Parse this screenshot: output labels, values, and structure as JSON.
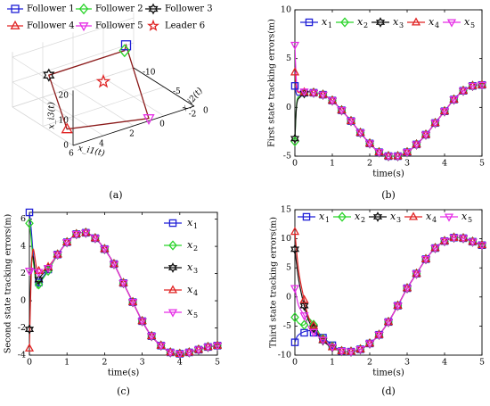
{
  "colors": {
    "x1": "#1f1fd6",
    "x2": "#2bd42b",
    "x3": "#111111",
    "x4": "#e02424",
    "x5": "#e62ee6",
    "leader": "#e02424",
    "trajectory": "#8b1a1a",
    "grid": "#d8d8d8"
  },
  "chart_data": [
    {
      "type": "scatter",
      "panel_label": "(a)",
      "projection": "3d",
      "xlabel": "x_i1(t)",
      "ylabel": "x_i2(t)",
      "zlabel": "x_i3(t)",
      "x_ticks": [
        "6",
        "4",
        "2",
        "0",
        "-2"
      ],
      "y_ticks": [
        "0",
        "-5",
        "-10"
      ],
      "z_ticks": [
        "0",
        "10",
        "20"
      ],
      "legend": [
        "Follower 1",
        "Follower 2",
        "Follower 3",
        "Follower 4",
        "Follower 5",
        "Leader 6"
      ],
      "legend_position": "top",
      "points": [
        {
          "name": "Follower 1",
          "marker": "square",
          "x": -1.5,
          "y": -10,
          "z": 10
        },
        {
          "name": "Follower 2",
          "marker": "diamond",
          "x": 1,
          "y": -4,
          "z": 22
        },
        {
          "name": "Follower 3",
          "marker": "hexagram",
          "x": 6,
          "y": -4,
          "z": 22
        },
        {
          "name": "Follower 4",
          "marker": "triangle-up",
          "x": 6,
          "y": -1,
          "z": 5
        },
        {
          "name": "Follower 5",
          "marker": "triangle-down",
          "x": 1,
          "y": 0,
          "z": 1
        },
        {
          "name": "Leader 6",
          "marker": "pentagram",
          "x": 2,
          "y": -5,
          "z": 10
        }
      ]
    },
    {
      "type": "line",
      "panel_label": "(b)",
      "xlabel": "time(s)",
      "ylabel": "First state tracking errors(m)",
      "xlim": [
        0,
        5
      ],
      "ylim": [
        -5,
        10
      ],
      "xticks": [
        "0",
        "1",
        "2",
        "3",
        "4",
        "5"
      ],
      "yticks": [
        "-5",
        "0",
        "5",
        "10"
      ],
      "grid": false,
      "legend_position": "top",
      "legend_labels": [
        "x",
        "x",
        "x",
        "x",
        "x"
      ],
      "legend_subscripts": [
        "1",
        "2",
        "3",
        "4",
        "5"
      ],
      "markers": [
        "square",
        "diamond",
        "hexagram",
        "triangle-up",
        "triangle-down"
      ],
      "series": [
        {
          "name": "x1",
          "x": [
            0,
            0.05,
            0.15,
            0.3,
            0.5,
            0.75,
            1,
            1.25,
            1.5,
            1.75,
            2,
            2.25,
            2.5,
            2.75,
            3,
            3.25,
            3.5,
            3.75,
            4,
            4.25,
            4.5,
            4.75,
            5
          ],
          "y": [
            2.2,
            1.3,
            1.3,
            1.6,
            1.5,
            1.3,
            0.7,
            -0.3,
            -1.4,
            -2.6,
            -3.7,
            -4.6,
            -5.0,
            -5.0,
            -4.6,
            -3.8,
            -2.8,
            -1.6,
            -0.4,
            0.8,
            1.7,
            2.2,
            2.3
          ]
        },
        {
          "name": "x2",
          "x": [
            0,
            0.05,
            0.15,
            0.3,
            0.5,
            0.75,
            1,
            1.25,
            1.5,
            1.75,
            2,
            2.25,
            2.5,
            2.75,
            3,
            3.25,
            3.5,
            3.75,
            4,
            4.25,
            4.5,
            4.75,
            5
          ],
          "y": [
            -3.5,
            0.5,
            1.2,
            1.6,
            1.5,
            1.3,
            0.7,
            -0.3,
            -1.4,
            -2.6,
            -3.7,
            -4.6,
            -5.0,
            -5.0,
            -4.6,
            -3.8,
            -2.8,
            -1.6,
            -0.4,
            0.8,
            1.7,
            2.2,
            2.3
          ]
        },
        {
          "name": "x3",
          "x": [
            0,
            0.05,
            0.15,
            0.3,
            0.5,
            0.75,
            1,
            1.25,
            1.5,
            1.75,
            2,
            2.25,
            2.5,
            2.75,
            3,
            3.25,
            3.5,
            3.75,
            4,
            4.25,
            4.5,
            4.75,
            5
          ],
          "y": [
            -3.2,
            0.3,
            1.1,
            1.6,
            1.5,
            1.3,
            0.7,
            -0.3,
            -1.4,
            -2.6,
            -3.7,
            -4.6,
            -5.0,
            -5.0,
            -4.6,
            -3.8,
            -2.8,
            -1.6,
            -0.4,
            0.8,
            1.7,
            2.2,
            2.3
          ]
        },
        {
          "name": "x4",
          "x": [
            0,
            0.05,
            0.15,
            0.3,
            0.5,
            0.75,
            1,
            1.25,
            1.5,
            1.75,
            2,
            2.25,
            2.5,
            2.75,
            3,
            3.25,
            3.5,
            3.75,
            4,
            4.25,
            4.5,
            4.75,
            5
          ],
          "y": [
            3.6,
            1.8,
            1.5,
            1.6,
            1.5,
            1.3,
            0.7,
            -0.3,
            -1.4,
            -2.6,
            -3.7,
            -4.6,
            -5.0,
            -5.0,
            -4.6,
            -3.8,
            -2.8,
            -1.6,
            -0.4,
            0.8,
            1.7,
            2.2,
            2.3
          ]
        },
        {
          "name": "x5",
          "x": [
            0,
            0.05,
            0.15,
            0.3,
            0.5,
            0.75,
            1,
            1.25,
            1.5,
            1.75,
            2,
            2.25,
            2.5,
            2.75,
            3,
            3.25,
            3.5,
            3.75,
            4,
            4.25,
            4.5,
            4.75,
            5
          ],
          "y": [
            6.4,
            2.2,
            1.6,
            1.6,
            1.5,
            1.3,
            0.7,
            -0.3,
            -1.4,
            -2.6,
            -3.7,
            -4.6,
            -5.0,
            -5.0,
            -4.6,
            -3.8,
            -2.8,
            -1.6,
            -0.4,
            0.8,
            1.7,
            2.2,
            2.3
          ]
        }
      ]
    },
    {
      "type": "line",
      "panel_label": "(c)",
      "xlabel": "time(s)",
      "ylabel": "Second state tracking errors(m)",
      "xlim": [
        0,
        5
      ],
      "ylim": [
        -4,
        6.5
      ],
      "xticks": [
        "0",
        "1",
        "2",
        "3",
        "4",
        "5"
      ],
      "yticks": [
        "-4",
        "-2",
        "0",
        "2",
        "4",
        "6"
      ],
      "grid": false,
      "legend_position": "right",
      "legend_labels": [
        "x",
        "x",
        "x",
        "x",
        "x"
      ],
      "legend_subscripts": [
        "1",
        "2",
        "3",
        "4",
        "5"
      ],
      "markers": [
        "square",
        "diamond",
        "hexagram",
        "triangle-up",
        "triangle-down"
      ],
      "series": [
        {
          "name": "x1",
          "x": [
            0,
            0.05,
            0.1,
            0.2,
            0.3,
            0.5,
            0.75,
            1,
            1.25,
            1.5,
            1.75,
            2,
            2.25,
            2.5,
            2.75,
            3,
            3.25,
            3.5,
            3.75,
            4,
            4.25,
            4.5,
            4.75,
            5
          ],
          "y": [
            6.5,
            5.2,
            3.5,
            1.2,
            1.5,
            2.3,
            3.4,
            4.3,
            4.9,
            5.0,
            4.6,
            3.8,
            2.7,
            1.3,
            -0.1,
            -1.5,
            -2.6,
            -3.3,
            -3.8,
            -3.9,
            -3.8,
            -3.6,
            -3.4,
            -3.3
          ]
        },
        {
          "name": "x2",
          "x": [
            0,
            0.05,
            0.1,
            0.2,
            0.3,
            0.5,
            0.75,
            1,
            1.25,
            1.5,
            1.75,
            2,
            2.25,
            2.5,
            2.75,
            3,
            3.25,
            3.5,
            3.75,
            4,
            4.25,
            4.5,
            4.75,
            5
          ],
          "y": [
            5.7,
            4.5,
            3.0,
            1.0,
            1.4,
            2.2,
            3.4,
            4.3,
            4.9,
            5.0,
            4.6,
            3.8,
            2.7,
            1.3,
            -0.1,
            -1.5,
            -2.6,
            -3.3,
            -3.8,
            -3.9,
            -3.8,
            -3.6,
            -3.4,
            -3.3
          ]
        },
        {
          "name": "x3",
          "x": [
            0,
            0.05,
            0.1,
            0.2,
            0.3,
            0.5,
            0.75,
            1,
            1.25,
            1.5,
            1.75,
            2,
            2.25,
            2.5,
            2.75,
            3,
            3.25,
            3.5,
            3.75,
            4,
            4.25,
            4.5,
            4.75,
            5
          ],
          "y": [
            -2.1,
            2.5,
            3.2,
            1.3,
            1.8,
            2.4,
            3.4,
            4.3,
            4.9,
            5.0,
            4.6,
            3.8,
            2.7,
            1.3,
            -0.1,
            -1.5,
            -2.6,
            -3.3,
            -3.8,
            -3.9,
            -3.8,
            -3.6,
            -3.4,
            -3.3
          ]
        },
        {
          "name": "x4",
          "x": [
            0,
            0.05,
            0.1,
            0.2,
            0.3,
            0.5,
            0.75,
            1,
            1.25,
            1.5,
            1.75,
            2,
            2.25,
            2.5,
            2.75,
            3,
            3.25,
            3.5,
            3.75,
            4,
            4.25,
            4.5,
            4.75,
            5
          ],
          "y": [
            -3.5,
            2.0,
            3.8,
            2.3,
            2.1,
            2.5,
            3.4,
            4.3,
            4.9,
            5.0,
            4.6,
            3.8,
            2.7,
            1.3,
            -0.1,
            -1.5,
            -2.6,
            -3.3,
            -3.8,
            -3.9,
            -3.8,
            -3.6,
            -3.4,
            -3.3
          ]
        },
        {
          "name": "x5",
          "x": [
            0,
            0.05,
            0.1,
            0.2,
            0.3,
            0.5,
            0.75,
            1,
            1.25,
            1.5,
            1.75,
            2,
            2.25,
            2.5,
            2.75,
            3,
            3.25,
            3.5,
            3.75,
            4,
            4.25,
            4.5,
            4.75,
            5
          ],
          "y": [
            2.2,
            2.0,
            2.3,
            2.2,
            2.0,
            2.4,
            3.4,
            4.3,
            4.9,
            5.0,
            4.6,
            3.8,
            2.7,
            1.3,
            -0.1,
            -1.5,
            -2.6,
            -3.3,
            -3.8,
            -3.9,
            -3.8,
            -3.6,
            -3.4,
            -3.3
          ]
        }
      ]
    },
    {
      "type": "line",
      "panel_label": "(d)",
      "xlabel": "time(s)",
      "ylabel": "Third state tracking errors(m)",
      "xlim": [
        0,
        5
      ],
      "ylim": [
        -10,
        15
      ],
      "xticks": [
        "0",
        "1",
        "2",
        "3",
        "4",
        "5"
      ],
      "yticks": [
        "-10",
        "-5",
        "0",
        "5",
        "10",
        "15"
      ],
      "grid": false,
      "legend_position": "top",
      "legend_labels": [
        "x",
        "x",
        "x",
        "x",
        "x"
      ],
      "legend_subscripts": [
        "1",
        "2",
        "3",
        "4",
        "5"
      ],
      "markers": [
        "square",
        "diamond",
        "hexagram",
        "triangle-up",
        "triangle-down"
      ],
      "series": [
        {
          "name": "x1",
          "x": [
            0,
            0.1,
            0.4,
            0.75,
            1,
            1.25,
            1.5,
            1.75,
            2,
            2.25,
            2.5,
            2.75,
            3,
            3.25,
            3.5,
            3.75,
            4,
            4.25,
            4.5,
            4.75,
            5
          ],
          "y": [
            -7.8,
            -6.5,
            -5.8,
            -7.0,
            -8.3,
            -9.3,
            -9.4,
            -9.0,
            -8.0,
            -6.5,
            -4.3,
            -1.5,
            1.5,
            4.0,
            6.5,
            8.4,
            9.6,
            10.2,
            10.1,
            9.5,
            8.9
          ]
        },
        {
          "name": "x2",
          "x": [
            0,
            0.1,
            0.25,
            0.4,
            0.75,
            1,
            1.25,
            1.5,
            1.75,
            2,
            2.25,
            2.5,
            2.75,
            3,
            3.25,
            3.5,
            3.75,
            4,
            4.25,
            4.5,
            4.75,
            5
          ],
          "y": [
            -3.5,
            -4.5,
            -4.8,
            -3.8,
            -7.2,
            -8.5,
            -9.3,
            -9.4,
            -9.0,
            -8.0,
            -6.5,
            -4.3,
            -1.5,
            1.5,
            4.0,
            6.5,
            8.4,
            9.6,
            10.2,
            10.1,
            9.5,
            8.9
          ]
        },
        {
          "name": "x3",
          "x": [
            0,
            0.1,
            0.25,
            0.4,
            0.75,
            1,
            1.25,
            1.5,
            1.75,
            2,
            2.25,
            2.5,
            2.75,
            3,
            3.25,
            3.5,
            3.75,
            4,
            4.25,
            4.5,
            4.75,
            5
          ],
          "y": [
            8.2,
            3.0,
            -1.5,
            -4.5,
            -7.5,
            -8.7,
            -9.3,
            -9.4,
            -9.0,
            -8.0,
            -6.5,
            -4.3,
            -1.5,
            1.5,
            4.0,
            6.5,
            8.4,
            9.6,
            10.2,
            10.1,
            9.5,
            8.9
          ]
        },
        {
          "name": "x4",
          "x": [
            0,
            0.1,
            0.25,
            0.4,
            0.75,
            1,
            1.25,
            1.5,
            1.75,
            2,
            2.25,
            2.5,
            2.75,
            3,
            3.25,
            3.5,
            3.75,
            4,
            4.25,
            4.5,
            4.75,
            5
          ],
          "y": [
            11.2,
            4.5,
            -0.5,
            -4.0,
            -7.3,
            -8.6,
            -9.3,
            -9.4,
            -9.0,
            -8.0,
            -6.5,
            -4.3,
            -1.5,
            1.5,
            4.0,
            6.5,
            8.4,
            9.6,
            10.2,
            10.1,
            9.5,
            8.9
          ]
        },
        {
          "name": "x5",
          "x": [
            0,
            0.1,
            0.25,
            0.4,
            0.75,
            1,
            1.25,
            1.5,
            1.75,
            2,
            2.25,
            2.5,
            2.75,
            3,
            3.25,
            3.5,
            3.75,
            4,
            4.25,
            4.5,
            4.75,
            5
          ],
          "y": [
            1.5,
            -1.5,
            -3.2,
            -5.5,
            -7.4,
            -8.6,
            -9.3,
            -9.4,
            -9.0,
            -8.0,
            -6.5,
            -4.3,
            -1.5,
            1.5,
            4.0,
            6.5,
            8.4,
            9.6,
            10.2,
            10.1,
            9.5,
            8.9
          ]
        }
      ]
    }
  ]
}
